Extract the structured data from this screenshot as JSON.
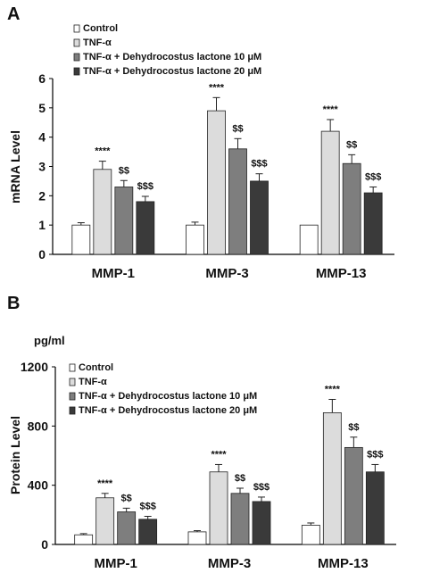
{
  "figure": {
    "legend_entries": [
      "Control",
      "TNF-α",
      "TNF-α + Dehydrocostus lactone 10 μM",
      "TNF-α + Dehydrocostus lactone 20 μM"
    ],
    "series_colors": [
      "#ffffff",
      "#dcdcdc",
      "#7e7e7e",
      "#3a3a3a"
    ]
  },
  "chart_data": [
    {
      "type": "bar",
      "panel_label": "A",
      "ylabel": "mRNA Level",
      "unit_label": "",
      "ylim": [
        0,
        6
      ],
      "yticks": [
        "0",
        "1",
        "2",
        "3",
        "4",
        "5",
        "6"
      ],
      "categories": [
        "MMP-1",
        "MMP-3",
        "MMP-13"
      ],
      "series": [
        {
          "name": "Control",
          "values": [
            1.0,
            1.0,
            1.0
          ],
          "errors": [
            0.08,
            0.1,
            0.0
          ],
          "annotations": [
            "",
            "",
            ""
          ]
        },
        {
          "name": "TNF-α",
          "values": [
            2.9,
            4.9,
            4.2
          ],
          "errors": [
            0.28,
            0.45,
            0.4
          ],
          "annotations": [
            "****",
            "****",
            "****"
          ]
        },
        {
          "name": "TNF-α + Dehydrocostus lactone 10 μM",
          "values": [
            2.3,
            3.6,
            3.1
          ],
          "errors": [
            0.22,
            0.35,
            0.3
          ],
          "annotations": [
            "$$",
            "$$",
            "$$"
          ]
        },
        {
          "name": "TNF-α + Dehydrocostus lactone 20 μM",
          "values": [
            1.8,
            2.5,
            2.1
          ],
          "errors": [
            0.18,
            0.25,
            0.2
          ],
          "annotations": [
            "$$$",
            "$$$",
            "$$$"
          ]
        }
      ],
      "legend_position": "top-left"
    },
    {
      "type": "bar",
      "panel_label": "B",
      "ylabel": "Protein Level",
      "unit_label": "pg/ml",
      "ylim": [
        0,
        1200
      ],
      "yticks": [
        "0",
        "400",
        "800",
        "1200"
      ],
      "categories": [
        "MMP-1",
        "MMP-3",
        "MMP-13"
      ],
      "series": [
        {
          "name": "Control",
          "values": [
            65,
            85,
            130
          ],
          "errors": [
            8,
            8,
            15
          ],
          "annotations": [
            "",
            "",
            ""
          ]
        },
        {
          "name": "TNF-α",
          "values": [
            315,
            490,
            890
          ],
          "errors": [
            30,
            50,
            90
          ],
          "annotations": [
            "****",
            "****",
            "****"
          ]
        },
        {
          "name": "TNF-α + Dehydrocostus lactone 10 μM",
          "values": [
            220,
            345,
            655
          ],
          "errors": [
            25,
            35,
            70
          ],
          "annotations": [
            "$$",
            "$$",
            "$$"
          ]
        },
        {
          "name": "TNF-α + Dehydrocostus lactone 20 μM",
          "values": [
            170,
            290,
            490
          ],
          "errors": [
            20,
            30,
            50
          ],
          "annotations": [
            "$$$",
            "$$$",
            "$$$"
          ]
        }
      ],
      "legend_position": "top-left"
    }
  ]
}
